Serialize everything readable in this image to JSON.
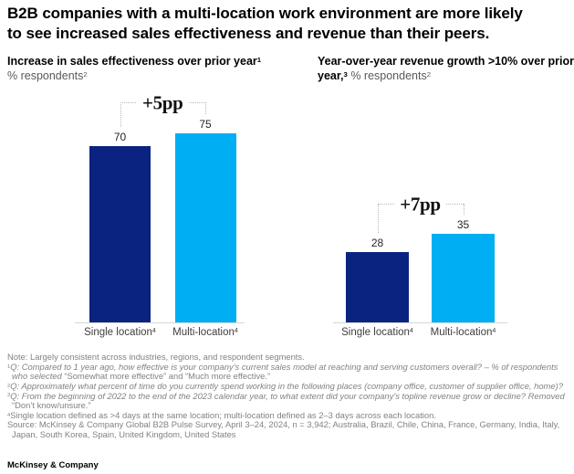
{
  "header": {
    "title": "B2B companies with a multi-location work environment are more likely to see increased sales effectiveness and revenue than their peers."
  },
  "charts_meta": {
    "left_title": {
      "bold": "Increase in sales effectiveness over prior year",
      "bold_sup": "1",
      "rest": "% respondents",
      "rest_sup": "2"
    },
    "right_title": {
      "bold": "Year-over-year revenue growth >10% over prior year,",
      "bold_sup": "3",
      "rest": "% respondents",
      "rest_sup": "2"
    }
  },
  "style": {
    "bar_dark": "#0a2381",
    "bar_cyan": "#00aef4",
    "bracket_line": "#b8b8b8",
    "baseline": "#d6d6d6"
  },
  "chart_data": [
    {
      "type": "bar",
      "title": "Increase in sales effectiveness over prior year",
      "subtitle": "% respondents",
      "categories": [
        "Single location",
        "Multi-location"
      ],
      "category_sup": "4",
      "values": [
        70,
        75
      ],
      "bar_colors": [
        "#0a2381",
        "#00aef4"
      ],
      "annotation": "+5pp",
      "value_labels": true,
      "axis": "hidden",
      "ylim": [
        0,
        80
      ]
    },
    {
      "type": "bar",
      "title": "Year-over-year revenue growth >10% over prior year",
      "subtitle": "% respondents",
      "categories": [
        "Single location",
        "Multi-location"
      ],
      "category_sup": "4",
      "values": [
        28,
        35
      ],
      "bar_colors": [
        "#0a2381",
        "#00aef4"
      ],
      "annotation": "+7pp",
      "value_labels": true,
      "axis": "hidden",
      "ylim": [
        0,
        80
      ]
    }
  ],
  "footnotes": [
    {
      "sup": "",
      "segments": [
        {
          "t": "Note: Largely consistent across industries, regions, and respondent segments.",
          "i": false
        }
      ]
    },
    {
      "sup": "1",
      "segments": [
        {
          "t": "Q: Compared to 1 year ago, how effective is your company’s current sales model at reaching and serving customers overall? – % of respondents who selected ",
          "i": true
        },
        {
          "t": "“Somewhat more effective” and “Much more effective.”",
          "i": false
        }
      ]
    },
    {
      "sup": "2",
      "segments": [
        {
          "t": "Q: Approximately what percent of time do you currently spend working in the following places (company office, customer of supplier office, home)?",
          "i": true
        }
      ]
    },
    {
      "sup": "3",
      "segments": [
        {
          "t": "Q: From the beginning of 2022 to the end of the 2023 calendar year, to what extent did your company’s topline revenue grow or decline? Removed ",
          "i": true
        },
        {
          "t": "“Don’t know/unsure.”",
          "i": false
        }
      ]
    },
    {
      "sup": "4",
      "segments": [
        {
          "t": "Single location defined as >4 days at the same location; multi-location defined as 2–3 days across each location.",
          "i": false
        }
      ]
    },
    {
      "sup": "",
      "segments": [
        {
          "t": "Source: McKinsey & Company Global B2B Pulse Survey, April 3–24, 2024, n = 3,942; Australia, Brazil, Chile, China, France, Germany, India, Italy, Japan, South Korea, Spain, United Kingdom, United States",
          "i": false
        }
      ]
    }
  ],
  "footer": {
    "logo": "McKinsey & Company"
  }
}
